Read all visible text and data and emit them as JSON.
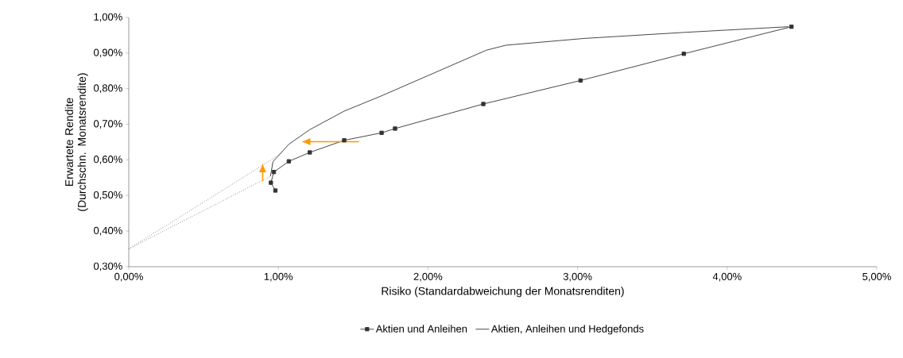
{
  "chart_data": {
    "type": "line",
    "xlabel": "Risiko (Standardabweichung der Monatsrenditen)",
    "ylabel": "Erwartete Rendite (Durchschn. Monatsrendite)",
    "xlim": [
      0,
      5
    ],
    "ylim": [
      0.3,
      1.0
    ],
    "xticks": [
      {
        "value": 0,
        "label": "0,00%"
      },
      {
        "value": 1,
        "label": "1,00%"
      },
      {
        "value": 2,
        "label": "2,00%"
      },
      {
        "value": 3,
        "label": "3,00%"
      },
      {
        "value": 4,
        "label": "4,00%"
      },
      {
        "value": 5,
        "label": "5,00%"
      }
    ],
    "yticks": [
      {
        "value": 0.3,
        "label": "0,30%"
      },
      {
        "value": 0.4,
        "label": "0,40%"
      },
      {
        "value": 0.5,
        "label": "0,50%"
      },
      {
        "value": 0.6,
        "label": "0,60%"
      },
      {
        "value": 0.7,
        "label": "0,70%"
      },
      {
        "value": 0.8,
        "label": "0,80%"
      },
      {
        "value": 0.9,
        "label": "0,90%"
      },
      {
        "value": 1.0,
        "label": "1,00%"
      }
    ],
    "legend": "bottom",
    "series": [
      {
        "name": "Aktien und Anleihen",
        "color": "#333333",
        "marker": "square",
        "line_style": "solid",
        "x": [
          0.98,
          0.95,
          0.97,
          1.07,
          1.21,
          1.44,
          1.69,
          1.78,
          2.37,
          3.02,
          3.71,
          4.43
        ],
        "values": [
          0.514,
          0.536,
          0.566,
          0.596,
          0.621,
          0.655,
          0.676,
          0.688,
          0.757,
          0.823,
          0.898,
          0.974
        ]
      },
      {
        "name": "Aktien, Anleihen und Hedgefonds",
        "color": "#333333",
        "marker": "none",
        "line_style": "solid",
        "x": [
          0.947,
          0.964,
          1.07,
          1.21,
          1.44,
          1.69,
          2.39,
          2.52,
          3.04,
          3.71,
          4.41
        ],
        "values": [
          0.554,
          0.595,
          0.644,
          0.685,
          0.737,
          0.78,
          0.908,
          0.922,
          0.941,
          0.958,
          0.974
        ]
      },
      {
        "color": "#555555",
        "marker": "none",
        "line_style": "dotted",
        "x": [
          0,
          1.02
        ],
        "values": [
          0.35,
          0.618
        ]
      },
      {
        "color": "#555555",
        "marker": "none",
        "line_style": "dotted",
        "x": [
          0,
          0.947
        ],
        "values": [
          0.35,
          0.554
        ]
      },
      {
        "color": "#ff9900",
        "marker": "none",
        "line_style": "solid",
        "x": [
          0.895,
          0.895
        ],
        "values": [
          0.54,
          0.588
        ]
      },
      {
        "color": "#ff9900",
        "marker": "none",
        "line_style": "solid",
        "x": [
          1.54,
          1.16
        ],
        "values": [
          0.651,
          0.651
        ]
      }
    ]
  }
}
